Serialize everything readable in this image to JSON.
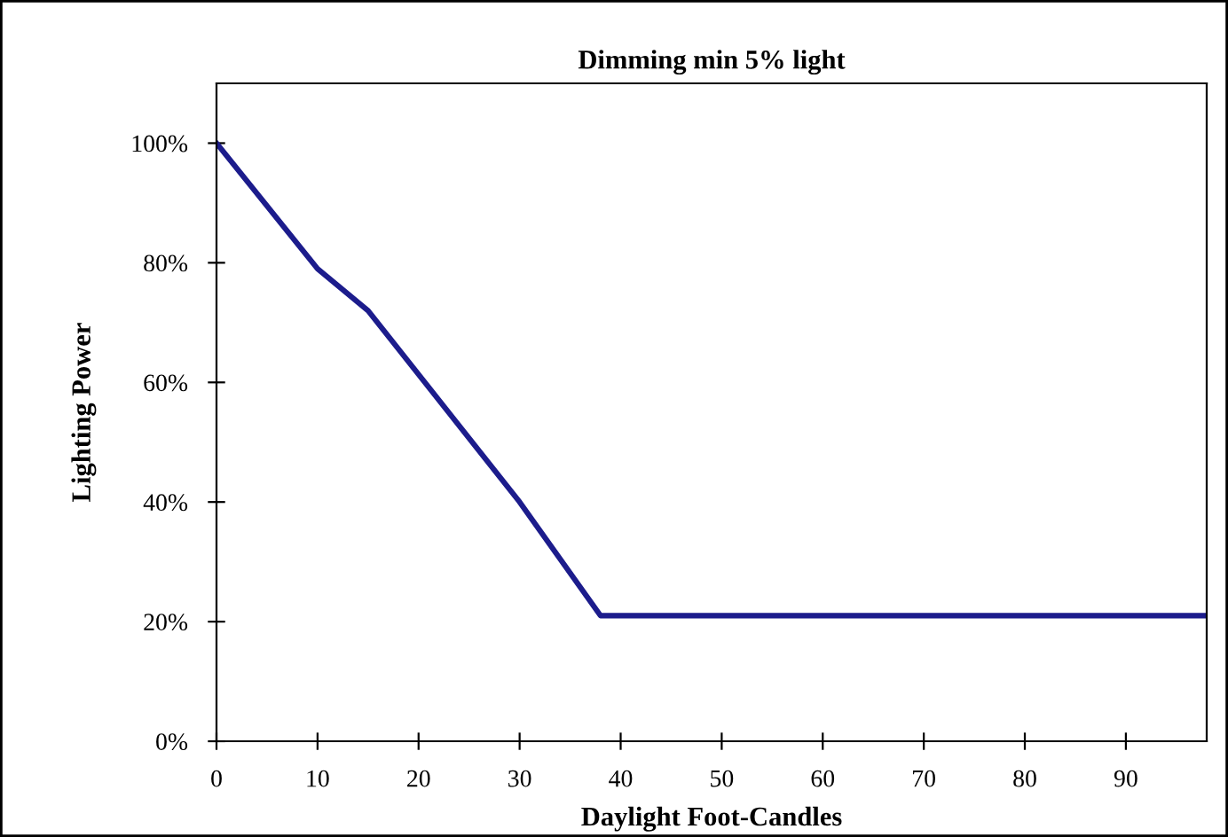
{
  "chart_data": {
    "type": "line",
    "title": "Dimming min 5% light",
    "xlabel": "Daylight Foot-Candles",
    "ylabel": "Lighting Power",
    "x": [
      0,
      10,
      15,
      30,
      38,
      98
    ],
    "series": [
      {
        "color": "#1c1c8c",
        "values": [
          100,
          79,
          72,
          40,
          21,
          21
        ]
      }
    ],
    "xlim": [
      0,
      98
    ],
    "xticks": [
      0,
      10,
      20,
      30,
      40,
      50,
      60,
      70,
      80,
      90
    ],
    "ylim": [
      0,
      110
    ],
    "yticks": [
      {
        "value": 0,
        "label": "0%"
      },
      {
        "value": 20,
        "label": "20%"
      },
      {
        "value": 40,
        "label": "40%"
      },
      {
        "value": 60,
        "label": "60%"
      },
      {
        "value": 80,
        "label": "80%"
      },
      {
        "value": 100,
        "label": "100%"
      }
    ],
    "grid": false,
    "legend": false,
    "marker": "none",
    "line_style": "solid"
  }
}
